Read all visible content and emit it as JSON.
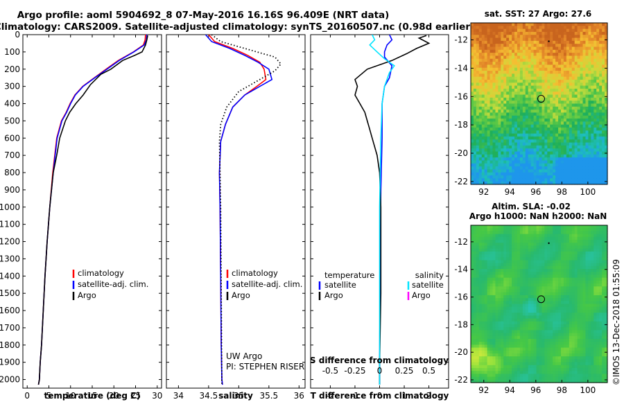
{
  "header": {
    "line1": "Argo profile: aoml 5904692_8 07-May-2016 16.16S 96.409E (NRT data)",
    "line2": "Climatology: CARS2009. Satellite-adjusted climatology: synTS_20160507.nc (0.98d earlier)"
  },
  "footer": {
    "credit_line1": "UW Argo",
    "credit_line2": "PI: STEPHEN RISER",
    "stamp": "©IMOS 13-Dec-2018 01:55:09"
  },
  "colors": {
    "climatology": "#ff0000",
    "satellite": "#0000ff",
    "argo": "#000000",
    "salinity_satellite": "#00e5ff",
    "salinity_argo": "#ff00ff"
  },
  "chart_data": [
    {
      "id": "temperature",
      "type": "line",
      "xlabel": "temperature (deg C)",
      "xlim": [
        -1,
        31
      ],
      "xticks": [
        0,
        5,
        10,
        15,
        20,
        25,
        30
      ],
      "ylim": [
        2050,
        0
      ],
      "yticks": [
        0,
        100,
        200,
        300,
        400,
        500,
        600,
        700,
        800,
        900,
        1000,
        1100,
        1200,
        1300,
        1400,
        1500,
        1600,
        1700,
        1800,
        1900,
        2000
      ],
      "legend": {
        "placement": "lower-center",
        "entries": [
          {
            "label": "climatology",
            "color": "#ff0000"
          },
          {
            "label": "satellite-adj. clim.",
            "color": "#0000ff"
          },
          {
            "label": "Argo",
            "color": "#000000"
          }
        ]
      },
      "series": [
        {
          "id": "climatology",
          "color": "#ff0000",
          "x": [
            27.3,
            27.2,
            26.8,
            24.5,
            21.0,
            18.2,
            15.5,
            12.8,
            11.0,
            9.9,
            9.0,
            7.9,
            6.8,
            5.9,
            5.2,
            4.6,
            4.1,
            3.7,
            3.3,
            3.0,
            2.8,
            2.6
          ],
          "y": [
            0,
            30,
            60,
            100,
            150,
            200,
            250,
            300,
            350,
            400,
            450,
            500,
            600,
            800,
            1000,
            1200,
            1400,
            1600,
            1800,
            1900,
            2000,
            2030
          ]
        },
        {
          "id": "satellite",
          "color": "#0000ff",
          "x": [
            27.6,
            27.5,
            27.0,
            24.6,
            21.2,
            18.4,
            15.6,
            12.9,
            11.1,
            10.0,
            9.1,
            8.0,
            6.9,
            6.0,
            5.2,
            4.6,
            4.1,
            3.7,
            3.3,
            3.0,
            2.8,
            2.6
          ],
          "y": [
            0,
            30,
            60,
            100,
            150,
            200,
            250,
            300,
            350,
            400,
            450,
            500,
            600,
            800,
            1000,
            1200,
            1400,
            1600,
            1800,
            1900,
            2000,
            2030
          ]
        },
        {
          "id": "argo",
          "color": "#000000",
          "x": [
            27.8,
            27.6,
            27.3,
            26.5,
            24.8,
            22.0,
            19.3,
            17.0,
            14.6,
            12.9,
            11.2,
            9.8,
            8.8,
            7.5,
            6.8,
            6.0,
            5.2,
            4.6,
            4.1,
            3.7,
            3.3,
            3.0,
            2.8,
            2.6
          ],
          "y": [
            5,
            30,
            60,
            100,
            120,
            150,
            200,
            230,
            290,
            350,
            400,
            450,
            500,
            600,
            700,
            800,
            1000,
            1200,
            1400,
            1600,
            1800,
            1900,
            2000,
            2030
          ]
        }
      ]
    },
    {
      "id": "salinity",
      "type": "line",
      "xlabel": "salinity",
      "xlim": [
        33.8,
        36.1
      ],
      "xticks": [
        34,
        34.5,
        35,
        35.5,
        36
      ],
      "ylim": [
        2050,
        0
      ],
      "legend": {
        "placement": "lower-center",
        "entries": [
          {
            "label": "climatology",
            "color": "#ff0000"
          },
          {
            "label": "satellite-adj. clim.",
            "color": "#0000ff"
          },
          {
            "label": "Argo",
            "color": "#000000"
          }
        ]
      },
      "series": [
        {
          "id": "climatology",
          "color": "#ff0000",
          "x": [
            34.5,
            34.6,
            34.9,
            35.15,
            35.35,
            35.42,
            35.45,
            35.3,
            35.1,
            34.9,
            34.78,
            34.7,
            34.68,
            34.69,
            34.7,
            34.71,
            34.72,
            34.73
          ],
          "y": [
            0,
            40,
            80,
            120,
            160,
            200,
            260,
            300,
            350,
            420,
            520,
            620,
            800,
            1000,
            1400,
            1800,
            2000,
            2030
          ]
        },
        {
          "id": "satellite",
          "color": "#0000ff",
          "x": [
            34.45,
            34.55,
            34.85,
            35.1,
            35.32,
            35.5,
            35.55,
            35.35,
            35.1,
            34.9,
            34.78,
            34.7,
            34.68,
            34.69,
            34.7,
            34.71,
            34.72,
            34.73
          ],
          "y": [
            0,
            40,
            80,
            120,
            160,
            200,
            260,
            300,
            350,
            420,
            520,
            620,
            800,
            1000,
            1400,
            1800,
            2000,
            2030
          ]
        },
        {
          "id": "argo",
          "color": "#000000",
          "style": "dotted",
          "x": [
            34.55,
            34.7,
            35.0,
            35.3,
            35.6,
            35.7,
            35.6,
            35.3,
            35.0,
            34.8,
            34.7,
            34.68,
            34.69,
            34.7,
            34.72
          ],
          "y": [
            0,
            40,
            70,
            100,
            130,
            170,
            210,
            270,
            330,
            420,
            520,
            620,
            800,
            1000,
            2030
          ]
        }
      ]
    },
    {
      "id": "difference",
      "type": "line",
      "xlabel": "T difference from climatology",
      "xlabel_top": "S difference from climatology",
      "xlim": [
        -2.8,
        2.8
      ],
      "xticks": [
        -2,
        -1,
        0,
        1,
        2
      ],
      "xticks_top": [
        "-0.5",
        "-0.25",
        "0",
        "0.25",
        "0.5"
      ],
      "xticks_top_pos": [
        -2,
        -1,
        0,
        1,
        2
      ],
      "ylim": [
        2050,
        0
      ],
      "legend": {
        "left_title": "temperature",
        "right_title": "salinity",
        "entries_left": [
          {
            "label": "satellite",
            "color": "#0000ff"
          },
          {
            "label": "Argo",
            "color": "#000000"
          }
        ],
        "entries_right": [
          {
            "label": "satellite",
            "color": "#00e5ff"
          },
          {
            "label": "Argo",
            "color": "#ff00ff"
          }
        ]
      },
      "series": [
        {
          "id": "t_satellite",
          "color": "#0000ff",
          "x": [
            0.4,
            0.5,
            0.3,
            0.2,
            0.2,
            0.5,
            0.4,
            0.2,
            0.1,
            0.1,
            0.05,
            0.02,
            0.0,
            0.0
          ],
          "y": [
            0,
            30,
            60,
            100,
            130,
            180,
            250,
            300,
            400,
            600,
            900,
            1400,
            1900,
            2030
          ]
        },
        {
          "id": "t_argo",
          "color": "#000000",
          "x": [
            1.9,
            1.6,
            2.0,
            1.5,
            1.1,
            0.5,
            -0.5,
            -1.0,
            -0.9,
            -1.0,
            -0.8,
            -0.6,
            -0.5,
            -0.4,
            -0.3,
            -0.1,
            0.0,
            0.05,
            0.05,
            0.0,
            0.0
          ],
          "y": [
            5,
            20,
            50,
            80,
            110,
            150,
            200,
            260,
            300,
            350,
            400,
            450,
            500,
            550,
            600,
            700,
            800,
            1000,
            1500,
            1900,
            2030
          ]
        },
        {
          "id": "s_satellite",
          "color": "#00e5ff",
          "x": [
            -0.3,
            -0.2,
            -0.4,
            -0.1,
            0.2,
            0.6,
            0.4,
            0.2,
            0.1,
            0.05,
            0.0,
            0.0,
            0.0
          ],
          "y": [
            0,
            30,
            60,
            100,
            140,
            180,
            220,
            300,
            400,
            600,
            1000,
            1600,
            2030
          ]
        }
      ]
    },
    {
      "id": "sst_map",
      "type": "heatmap",
      "title": "sat. SST: 27 Argo: 27.6",
      "xlim": [
        91,
        101.5
      ],
      "xticks": [
        92,
        94,
        96,
        98,
        100
      ],
      "ylim": [
        -22.2,
        -10.8
      ],
      "yticks": [
        -12,
        -14,
        -16,
        -18,
        -20,
        -22
      ],
      "marker": {
        "lon": 96.409,
        "lat": -16.16
      }
    },
    {
      "id": "sla_map",
      "type": "heatmap",
      "title": "Altim. SLA: -0.02",
      "subtitle": "Argo h1000: NaN h2000: NaN",
      "xlim": [
        91,
        101.5
      ],
      "xticks": [
        92,
        94,
        96,
        98,
        100
      ],
      "ylim": [
        -22.2,
        -10.8
      ],
      "yticks": [
        -12,
        -14,
        -16,
        -18,
        -20,
        -22
      ],
      "marker": {
        "lon": 96.409,
        "lat": -16.16
      }
    }
  ]
}
